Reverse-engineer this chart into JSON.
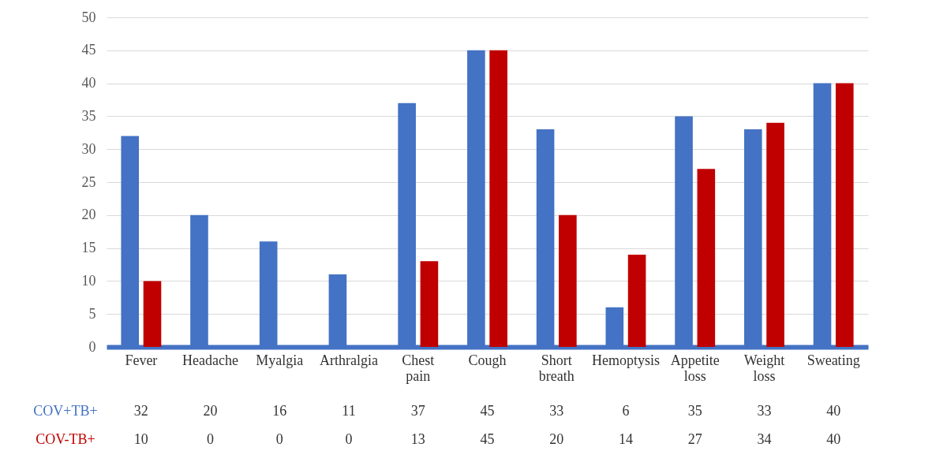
{
  "chart_data": {
    "type": "bar",
    "categories": [
      "Fever",
      "Headache",
      "Myalgia",
      "Arthralgia",
      "Chest pain",
      "Cough",
      "Short breath",
      "Hemoptysis",
      "Appetite loss",
      "Weight loss",
      "Sweating"
    ],
    "series": [
      {
        "name": "COV+TB+",
        "color": "#4472c4",
        "values": [
          32,
          20,
          16,
          11,
          37,
          45,
          33,
          6,
          35,
          33,
          40
        ]
      },
      {
        "name": "COV-TB+",
        "color": "#c00000",
        "values": [
          10,
          0,
          0,
          0,
          13,
          45,
          20,
          14,
          27,
          34,
          40
        ]
      }
    ],
    "ylim": [
      0,
      50
    ],
    "yticks": [
      0,
      5,
      10,
      15,
      20,
      25,
      30,
      35,
      40,
      45,
      50
    ],
    "grid": "y",
    "data_labels": true
  }
}
